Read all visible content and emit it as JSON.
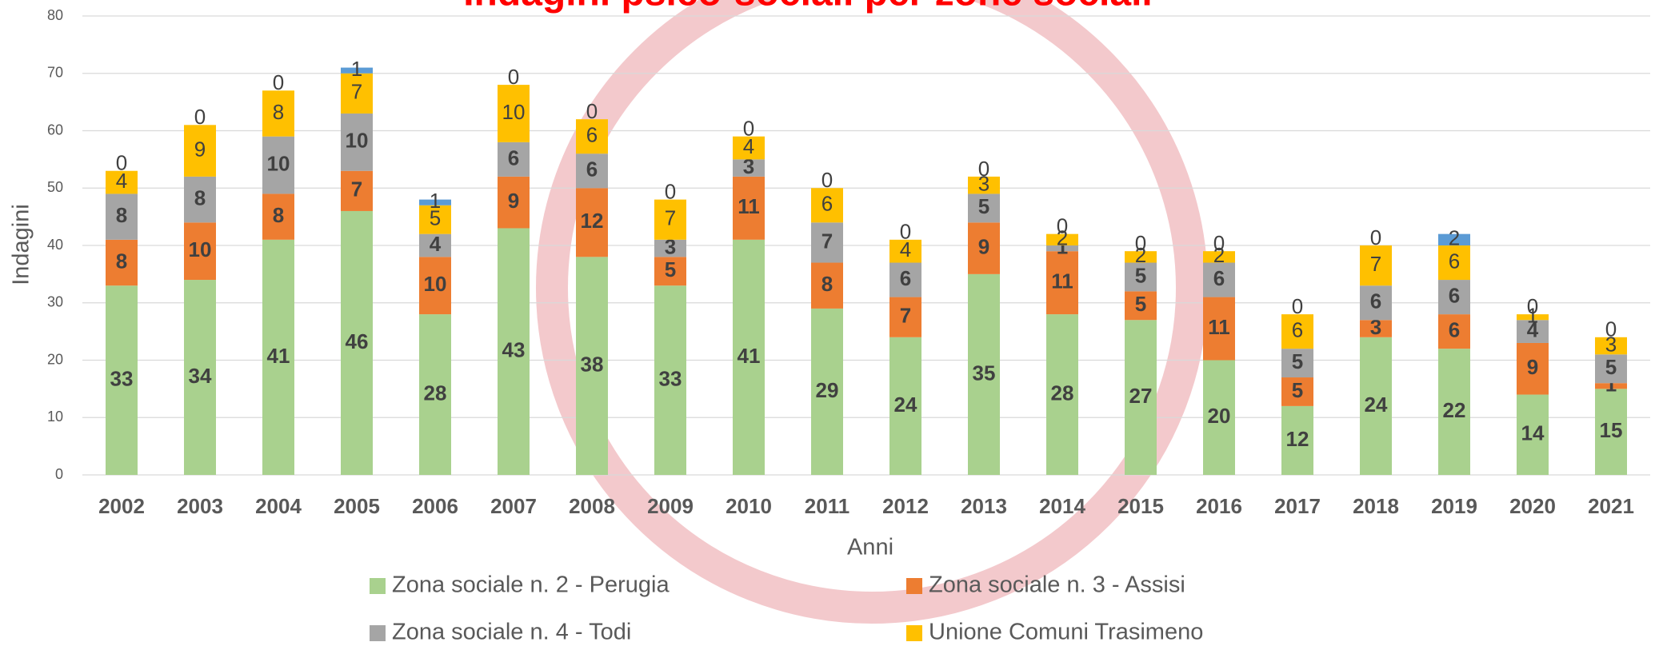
{
  "chart_data": {
    "type": "stacked-bar",
    "title": "Indagini psico-sociali per zone sociali",
    "x_label": "Anni",
    "y_label": "Indagini",
    "categories": [
      "2002",
      "2003",
      "2004",
      "2005",
      "2006",
      "2007",
      "2008",
      "2009",
      "2010",
      "2011",
      "2012",
      "2013",
      "2014",
      "2015",
      "2016",
      "2017",
      "2018",
      "2019",
      "2020",
      "2021"
    ],
    "series": [
      {
        "name": "Zona sociale n. 2 - Perugia",
        "color": "#a9d18e",
        "values": [
          33,
          34,
          41,
          46,
          28,
          43,
          38,
          33,
          41,
          29,
          24,
          35,
          28,
          27,
          20,
          12,
          24,
          22,
          14,
          15
        ]
      },
      {
        "name": "Zona sociale n. 3 - Assisi",
        "color": "#ed7d31",
        "values": [
          8,
          10,
          8,
          7,
          10,
          9,
          12,
          5,
          11,
          8,
          7,
          9,
          11,
          5,
          11,
          5,
          3,
          6,
          9,
          1
        ]
      },
      {
        "name": "Zona sociale n. 4 - Todi",
        "color": "#a5a5a5",
        "values": [
          8,
          8,
          10,
          10,
          4,
          6,
          6,
          3,
          3,
          7,
          6,
          5,
          1,
          5,
          6,
          5,
          6,
          6,
          4,
          5
        ]
      },
      {
        "name": "Unione Comuni Trasimeno",
        "color": "#ffc000",
        "values": [
          4,
          9,
          8,
          7,
          5,
          10,
          6,
          7,
          4,
          6,
          4,
          3,
          2,
          2,
          2,
          6,
          7,
          6,
          1,
          3
        ]
      },
      {
        "color": "#5b9bd5",
        "values": [
          0,
          0,
          0,
          1,
          1,
          0,
          0,
          0,
          0,
          0,
          0,
          0,
          0,
          0,
          0,
          0,
          0,
          2,
          0,
          0
        ]
      }
    ],
    "ylim": [
      0,
      80
    ],
    "yticks": [
      0,
      10,
      20,
      30,
      40,
      50,
      60,
      70,
      80
    ],
    "grid": true
  }
}
